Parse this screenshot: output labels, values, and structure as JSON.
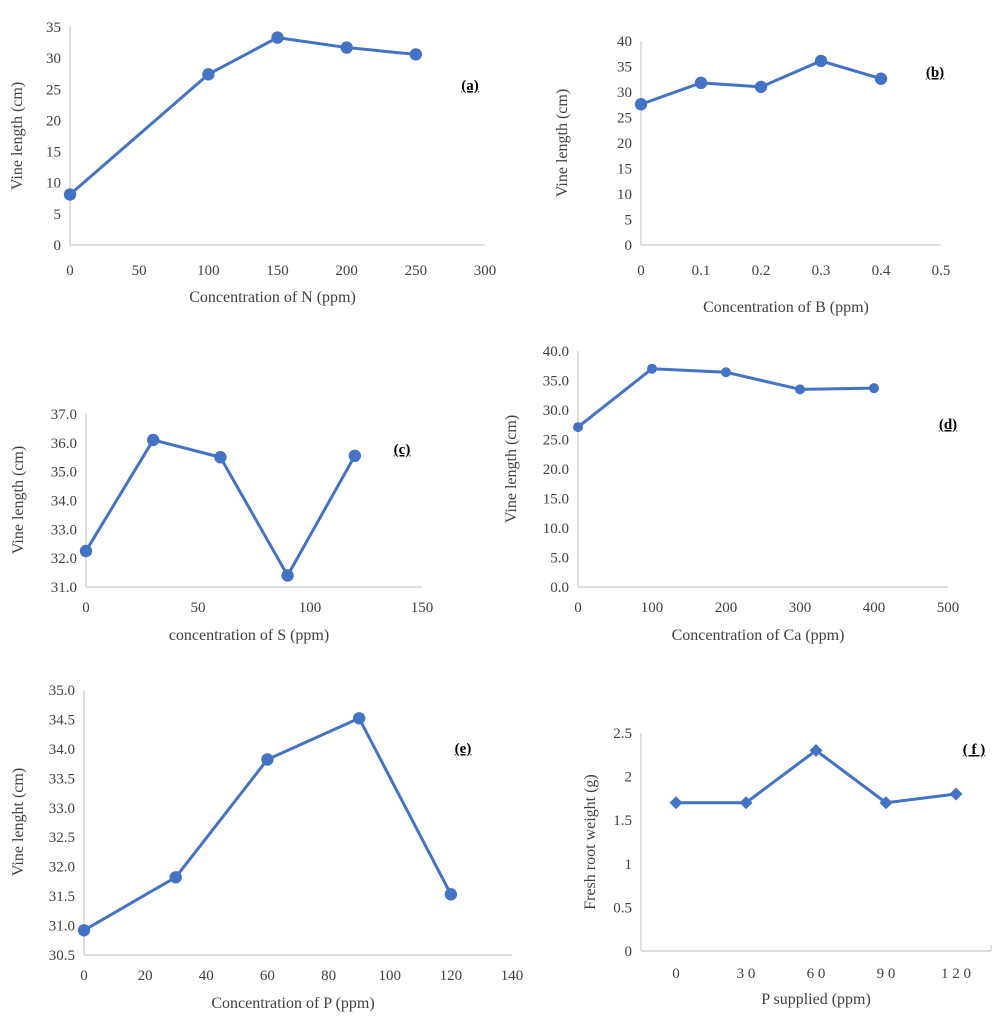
{
  "colors": {
    "series": "#4472c4",
    "axis": "#bfbfbf",
    "text": "#404040"
  },
  "chart_data": [
    {
      "id": "a",
      "panel_label": "(a)",
      "type": "scatter",
      "xlabel": "Concentration of N (ppm)",
      "ylabel": "Vine length (cm)",
      "xlim": [
        0,
        300
      ],
      "ylim": [
        0,
        35
      ],
      "xticks": [
        "0",
        "50",
        "100",
        "150",
        "200",
        "250",
        "300"
      ],
      "yticks": [
        "0",
        "5",
        "10",
        "15",
        "20",
        "25",
        "30",
        "35"
      ],
      "marker": "circle",
      "grid": false,
      "series": [
        {
          "x": [
            0,
            100,
            150,
            200,
            250
          ],
          "y": [
            8.1,
            27.4,
            33.3,
            31.7,
            30.6
          ]
        }
      ]
    },
    {
      "id": "b",
      "panel_label": "(b)",
      "type": "scatter",
      "xlabel": "Concentration of B (ppm)",
      "ylabel": "Vine length (cm)",
      "xlim": [
        0,
        0.5
      ],
      "ylim": [
        0,
        40
      ],
      "xticks": [
        "0",
        "0.1",
        "0.2",
        "0.3",
        "0.4",
        "0.5"
      ],
      "yticks": [
        "0",
        "5",
        "10",
        "15",
        "20",
        "25",
        "30",
        "35",
        "40"
      ],
      "marker": "circle",
      "grid": false,
      "series": [
        {
          "x": [
            0,
            0.1,
            0.2,
            0.3,
            0.4
          ],
          "y": [
            27.6,
            31.8,
            31.0,
            36.1,
            32.6
          ]
        }
      ]
    },
    {
      "id": "c",
      "panel_label": "(c)",
      "type": "scatter",
      "xlabel": "concentration of S (ppm)",
      "ylabel": "Vine length (cm)",
      "xlim": [
        0,
        150
      ],
      "ylim": [
        31.0,
        37.0
      ],
      "xticks": [
        "0",
        "50",
        "100",
        "150"
      ],
      "yticks": [
        "31.0",
        "32.0",
        "33.0",
        "34.0",
        "35.0",
        "36.0",
        "37.0"
      ],
      "marker": "circle",
      "grid": false,
      "series": [
        {
          "x": [
            0,
            30,
            60,
            90,
            120
          ],
          "y": [
            32.25,
            36.1,
            35.5,
            31.4,
            35.55
          ]
        }
      ]
    },
    {
      "id": "d",
      "panel_label": "(d)",
      "type": "scatter",
      "xlabel": "Concentration of Ca (ppm)",
      "ylabel": "Vine length (cm)",
      "xlim": [
        0,
        500
      ],
      "ylim": [
        0,
        40
      ],
      "xticks": [
        "0",
        "100",
        "200",
        "300",
        "400",
        "500"
      ],
      "yticks": [
        "0.0",
        "5.0",
        "10.0",
        "15.0",
        "20.0",
        "25.0",
        "30.0",
        "35.0",
        "40.0"
      ],
      "marker": "circle-small",
      "grid": false,
      "series": [
        {
          "x": [
            0,
            100,
            200,
            300,
            400
          ],
          "y": [
            27.1,
            37.0,
            36.4,
            33.5,
            33.7
          ]
        }
      ]
    },
    {
      "id": "e",
      "panel_label": "(e)",
      "type": "scatter",
      "xlabel": "Concentration of P (ppm)",
      "ylabel": "Vine lenght (cm)",
      "xlim": [
        0,
        140
      ],
      "ylim": [
        30.5,
        35.0
      ],
      "xticks": [
        "0",
        "20",
        "40",
        "60",
        "80",
        "100",
        "120",
        "140"
      ],
      "yticks": [
        "30.5",
        "31.0",
        "31.5",
        "32.0",
        "32.5",
        "33.0",
        "33.5",
        "34.0",
        "34.5",
        "35.0"
      ],
      "marker": "circle",
      "grid": false,
      "series": [
        {
          "x": [
            0,
            30,
            60,
            90,
            120
          ],
          "y": [
            30.92,
            31.82,
            33.82,
            34.52,
            31.53
          ]
        }
      ]
    },
    {
      "id": "f",
      "panel_label": "( f )",
      "type": "line",
      "xlabel": "P supplied (ppm)",
      "ylabel": "Fresh root weight (g)",
      "categories": [
        "0",
        "3 0",
        "6 0",
        "9 0",
        "1 2 0"
      ],
      "ylim": [
        0,
        2.5
      ],
      "yticks": [
        "0",
        "0.5",
        "1",
        "1.5",
        "2",
        "2.5"
      ],
      "marker": "diamond",
      "grid": false,
      "series": [
        {
          "values": [
            1.7,
            1.7,
            2.3,
            1.7,
            1.8
          ]
        }
      ]
    }
  ]
}
